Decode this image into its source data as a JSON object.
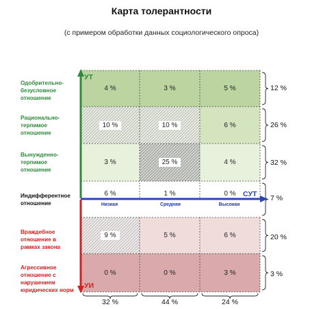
{
  "title": "Карта толерантности",
  "subtitle": "(с примером обработки данных социологического опроса)",
  "axes": {
    "vertical_top": "УТ",
    "vertical_bottom": "УИ",
    "horizontal": "СУТ",
    "levels": [
      "Низкая",
      "Средняя",
      "Высокая"
    ]
  },
  "rows": [
    {
      "label": "Одобрительно-безусловное отношение",
      "color": "#2e8b3a",
      "cells": [
        "4 %",
        "3 %",
        "5 %"
      ],
      "total": "12 %"
    },
    {
      "label": "Рационально-терпимое отношение",
      "color": "#2e8b3a",
      "cells": [
        "10 %",
        "10 %",
        "6 %"
      ],
      "total": "26 %"
    },
    {
      "label": "Вынужденно-терпимое отношение",
      "color": "#2e8b3a",
      "cells": [
        "3 %",
        "25 %",
        "4 %"
      ],
      "total": "32 %"
    },
    {
      "label": "Индифферентное отношение",
      "color": "#111111",
      "cells": [
        "6 %",
        "1 %",
        "0 %"
      ],
      "total": "7 %"
    },
    {
      "label": "Враждебное отношение в рамках закона",
      "color": "#d42020",
      "cells": [
        "9 %",
        "5 %",
        "6 %"
      ],
      "total": "20 %"
    },
    {
      "label": "Агрессивное отношение с нарушением юридических норм",
      "color": "#d42020",
      "cells": [
        "0 %",
        "0 %",
        "3 %"
      ],
      "total": "3 %"
    }
  ],
  "column_totals": [
    "32 %",
    "44 %",
    "24 %"
  ],
  "colors": {
    "green_strong": "#bcd4a0",
    "green_mid": "#d3e4bf",
    "green_light": "#e8f1dc",
    "pink_light": "#f1dcdc",
    "pink_mid": "#e6c3c3",
    "pink_strong": "#d9a9ab",
    "axis_green": "#2e8b3a",
    "axis_blue": "#2a44b0",
    "axis_red": "#d42020"
  }
}
